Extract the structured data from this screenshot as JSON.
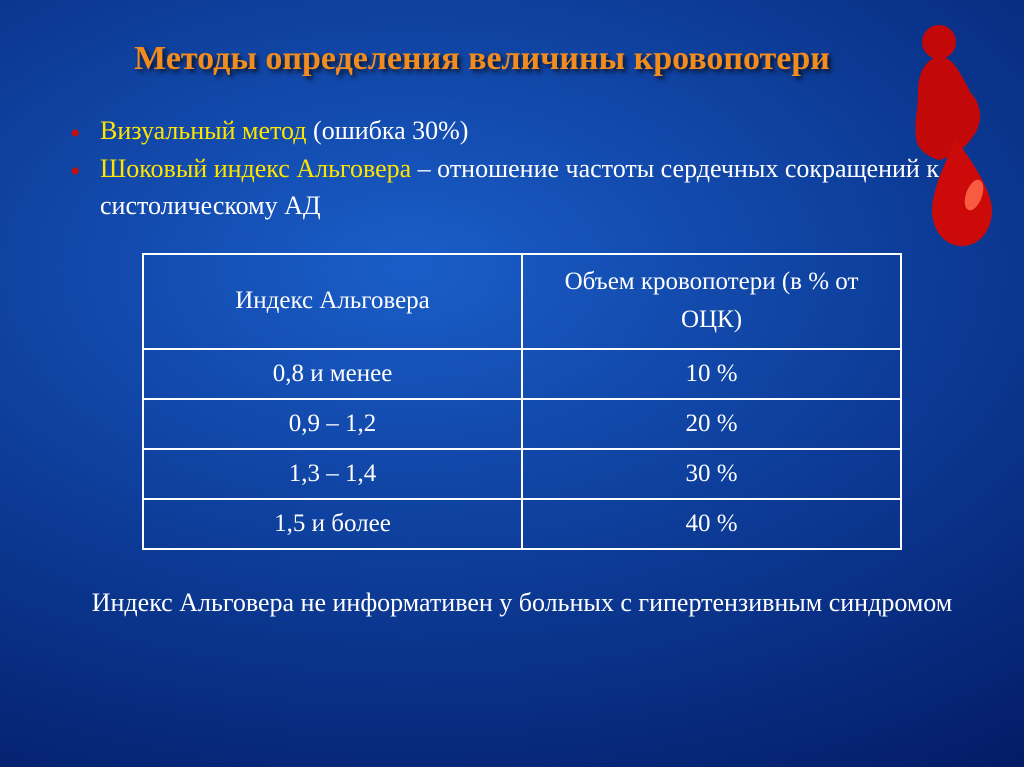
{
  "title_color": "#f28c1e",
  "bullet_marker_color": "#c01010",
  "highlight_color": "#ffe400",
  "text_color": "#ffffff",
  "title": "Методы определения величины кровопотери",
  "bullets": [
    {
      "lead": "Визуальный метод",
      "rest": " (ошибка 30%)",
      "lead_highlight": true
    },
    {
      "lead": "Шоковый индекс Альговера",
      "rest": " – отношение частоты сердечных сокращений  к систолическому АД",
      "lead_highlight": true
    }
  ],
  "table": {
    "headers": [
      "Индекс Альговера",
      "Объем кровопотери (в % от ОЦК)"
    ],
    "rows": [
      [
        "0,8 и менее",
        "10 %"
      ],
      [
        "0,9 – 1,2",
        "20 %"
      ],
      [
        "1,3 – 1,4",
        "30 %"
      ],
      [
        "1,5 и более",
        "40 %"
      ]
    ],
    "col_widths_pct": [
      50,
      50
    ],
    "border_color": "#ffffff"
  },
  "footnote": "Индекс Альговера не информативен у больных с гипертензивным синдромом",
  "figure": {
    "body_color": "#c20808",
    "drop_color": "#cc0a0a",
    "drop_highlight": "#ff6a4a"
  }
}
